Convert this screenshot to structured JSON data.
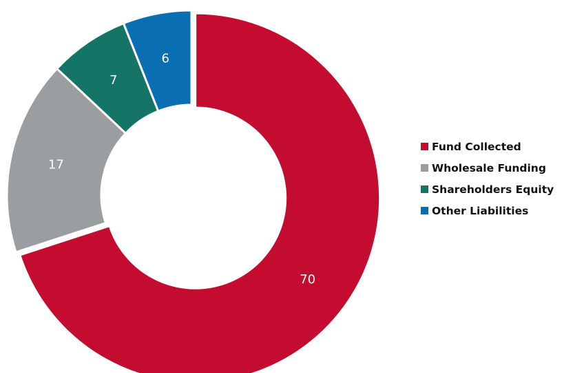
{
  "chart_data": {
    "type": "pie",
    "title": "",
    "categories": [
      "Fund Collected",
      "Wholesale Funding",
      "Shareholders Equity",
      "Other Liabilities"
    ],
    "values": [
      70,
      17,
      7,
      6
    ],
    "colors": [
      "#c40c30",
      "#9b9ea1",
      "#147566",
      "#0a6eb3"
    ],
    "data_labels": [
      "70",
      "17",
      "7",
      "6"
    ],
    "legend": {
      "placement": "right",
      "entries": [
        "Fund Collected",
        "Wholesale Funding",
        "Shareholders Equity",
        "Other Liabilities"
      ]
    },
    "donut": true,
    "exploded_slice": "Fund Collected"
  }
}
